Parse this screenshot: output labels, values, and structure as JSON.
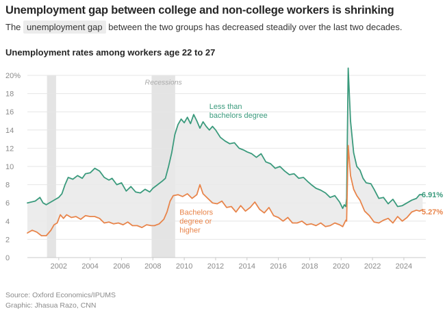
{
  "header": {
    "title": "Unemployment gap between college and non-college workers is shrinking",
    "subtitle_before": "The",
    "subtitle_highlight": "unemployment gap",
    "subtitle_after": "between the two groups has decreased steadily over the last two decades.",
    "chart_heading": "Unemployment rates among workers age 22 to 27"
  },
  "footer": {
    "source": "Source: Oxford Economics/IPUMS",
    "graphic": "Graphic: Jhasua Razo, CNN"
  },
  "colors": {
    "non_college": "#3a9a7c",
    "college": "#e8844a",
    "gap_fill": "#e9e9e9",
    "recession_band": "#e4e4e4",
    "grid": "#e6e6e6",
    "axis_text": "#8a8a8a"
  },
  "chart_data": {
    "type": "line",
    "ylim": [
      0,
      20
    ],
    "xlim": [
      2000.0,
      2025.4
    ],
    "y_ticks": [
      0,
      2,
      4,
      6,
      8,
      10,
      12,
      14,
      16,
      18,
      20
    ],
    "y_tick_labels": [
      "0",
      "2",
      "4",
      "6",
      "8",
      "10",
      "12",
      "14",
      "16",
      "18",
      "20%"
    ],
    "x_ticks": [
      2002,
      2004,
      2006,
      2008,
      2010,
      2012,
      2014,
      2016,
      2018,
      2020,
      2022,
      2024
    ],
    "x_tick_labels": [
      "2002",
      "2004",
      "2006",
      "2008",
      "2010",
      "2012",
      "2014",
      "2016",
      "2018",
      "2020",
      "2022",
      "2024"
    ],
    "grid": true,
    "recessions": [
      [
        2001.25,
        2001.83
      ],
      [
        2007.92,
        2009.42
      ]
    ],
    "recession_label": "Recessions",
    "fill_between_series": true,
    "series": [
      {
        "key": "non_college",
        "name": "Less than bachelors degree",
        "label_lines": [
          "Less than",
          "bachelors degree"
        ],
        "end_label": "6.91%",
        "x": [
          2000.0,
          2000.5,
          2000.8,
          2001.0,
          2001.2,
          2001.5,
          2001.8,
          2002.0,
          2002.2,
          2002.4,
          2002.6,
          2002.9,
          2003.2,
          2003.5,
          2003.7,
          2004.0,
          2004.3,
          2004.6,
          2004.9,
          2005.2,
          2005.4,
          2005.7,
          2006.0,
          2006.3,
          2006.6,
          2006.9,
          2007.2,
          2007.5,
          2007.8,
          2008.0,
          2008.3,
          2008.6,
          2008.8,
          2009.0,
          2009.2,
          2009.4,
          2009.6,
          2009.8,
          2010.0,
          2010.2,
          2010.4,
          2010.6,
          2010.8,
          2011.0,
          2011.2,
          2011.4,
          2011.6,
          2011.8,
          2012.0,
          2012.3,
          2012.6,
          2012.9,
          2013.2,
          2013.5,
          2013.8,
          2014.0,
          2014.3,
          2014.6,
          2014.9,
          2015.2,
          2015.5,
          2015.8,
          2016.1,
          2016.4,
          2016.7,
          2017.0,
          2017.3,
          2017.6,
          2017.9,
          2018.1,
          2018.4,
          2018.7,
          2019.0,
          2019.3,
          2019.6,
          2019.9,
          2020.1,
          2020.2,
          2020.3,
          2020.35,
          2020.45,
          2020.6,
          2020.8,
          2021.0,
          2021.2,
          2021.4,
          2021.6,
          2021.9,
          2022.1,
          2022.4,
          2022.7,
          2023.0,
          2023.3,
          2023.6,
          2023.9,
          2024.2,
          2024.5,
          2024.8,
          2025.0,
          2025.2
        ],
        "values": [
          6.0,
          6.2,
          6.6,
          6.0,
          5.8,
          6.1,
          6.4,
          6.6,
          7.0,
          8.0,
          8.8,
          8.6,
          9.0,
          8.7,
          9.2,
          9.3,
          9.8,
          9.5,
          8.8,
          8.5,
          8.7,
          8.0,
          8.2,
          7.3,
          7.8,
          7.2,
          7.1,
          7.5,
          7.2,
          7.6,
          8.0,
          8.4,
          8.7,
          10.0,
          11.5,
          13.5,
          14.6,
          15.2,
          14.8,
          15.4,
          14.7,
          15.7,
          15.0,
          14.2,
          14.9,
          14.4,
          14.0,
          14.4,
          14.0,
          13.2,
          12.8,
          12.5,
          12.6,
          12.0,
          11.8,
          11.6,
          11.4,
          11.0,
          11.4,
          10.5,
          10.3,
          9.8,
          10.0,
          9.5,
          9.1,
          9.2,
          8.7,
          8.8,
          8.3,
          8.0,
          7.6,
          7.4,
          7.1,
          6.6,
          6.8,
          6.1,
          5.4,
          5.8,
          5.6,
          6.5,
          20.8,
          15.0,
          11.5,
          10.0,
          9.6,
          8.7,
          8.2,
          8.1,
          7.5,
          6.5,
          6.6,
          5.9,
          6.4,
          5.6,
          5.7,
          6.0,
          6.3,
          6.5,
          6.9,
          6.91
        ]
      },
      {
        "key": "college",
        "name": "Bachelors degree or higher",
        "label_lines": [
          "Bachelors",
          "degree or",
          "higher"
        ],
        "end_label": "5.27%",
        "x": [
          2000.0,
          2000.3,
          2000.6,
          2000.9,
          2001.2,
          2001.5,
          2001.7,
          2001.9,
          2002.1,
          2002.3,
          2002.5,
          2002.8,
          2003.1,
          2003.4,
          2003.7,
          2004.0,
          2004.3,
          2004.6,
          2004.9,
          2005.2,
          2005.5,
          2005.8,
          2006.1,
          2006.4,
          2006.7,
          2007.0,
          2007.3,
          2007.6,
          2007.9,
          2008.1,
          2008.4,
          2008.7,
          2008.9,
          2009.1,
          2009.3,
          2009.6,
          2009.9,
          2010.2,
          2010.5,
          2010.8,
          2011.0,
          2011.2,
          2011.5,
          2011.8,
          2012.1,
          2012.4,
          2012.7,
          2013.0,
          2013.3,
          2013.6,
          2013.9,
          2014.2,
          2014.5,
          2014.8,
          2015.1,
          2015.4,
          2015.7,
          2016.0,
          2016.3,
          2016.6,
          2016.9,
          2017.2,
          2017.5,
          2017.8,
          2018.1,
          2018.4,
          2018.7,
          2019.0,
          2019.3,
          2019.6,
          2019.9,
          2020.1,
          2020.3,
          2020.35,
          2020.45,
          2020.6,
          2020.8,
          2021.0,
          2021.2,
          2021.5,
          2021.8,
          2022.1,
          2022.4,
          2022.7,
          2023.0,
          2023.3,
          2023.6,
          2023.9,
          2024.2,
          2024.5,
          2024.8,
          2025.0,
          2025.2
        ],
        "values": [
          2.7,
          3.0,
          2.8,
          2.4,
          2.4,
          3.0,
          3.6,
          3.8,
          4.7,
          4.3,
          4.7,
          4.4,
          4.5,
          4.2,
          4.6,
          4.5,
          4.5,
          4.3,
          3.8,
          3.9,
          3.7,
          3.8,
          3.6,
          3.9,
          3.5,
          3.5,
          3.3,
          3.6,
          3.5,
          3.5,
          3.7,
          4.2,
          5.0,
          6.2,
          6.8,
          6.9,
          6.7,
          7.0,
          6.5,
          6.9,
          8.0,
          7.0,
          6.5,
          6.0,
          5.9,
          6.2,
          5.5,
          5.6,
          5.0,
          5.7,
          5.1,
          5.5,
          6.1,
          5.3,
          4.9,
          5.5,
          4.6,
          4.4,
          4.0,
          4.4,
          3.8,
          3.8,
          4.0,
          3.6,
          3.7,
          3.5,
          3.8,
          3.4,
          3.5,
          3.8,
          3.6,
          3.4,
          4.1,
          4.0,
          12.3,
          9.0,
          7.5,
          6.8,
          6.3,
          5.1,
          4.6,
          3.9,
          3.8,
          4.1,
          4.3,
          3.8,
          4.5,
          4.0,
          4.4,
          5.0,
          5.2,
          5.1,
          5.27
        ]
      }
    ]
  }
}
